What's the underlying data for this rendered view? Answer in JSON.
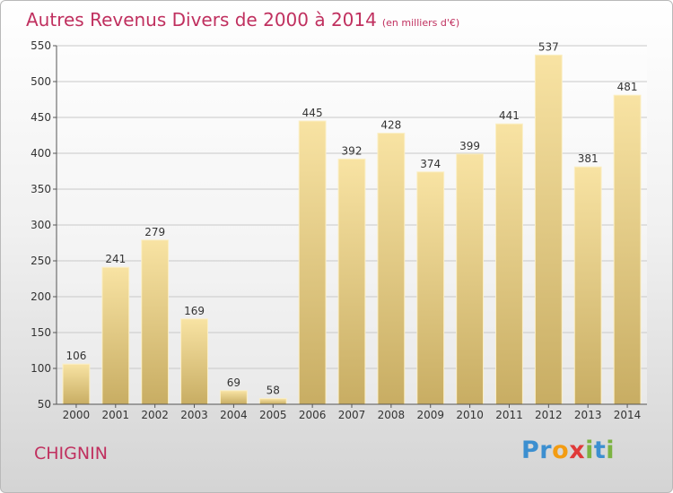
{
  "header": {
    "title": "Autres Revenus Divers de 2000 à 2014",
    "unit": "(en milliers d'€)"
  },
  "footer": {
    "place": "CHIGNIN",
    "logo_letters": [
      "P",
      "r",
      "o",
      "x",
      "i",
      "t",
      "i"
    ],
    "logo_colors": [
      "#3c8fd0",
      "#3c8fd0",
      "#f39c12",
      "#e03a3a",
      "#7cb342",
      "#3c8fd0",
      "#7cb342"
    ]
  },
  "colors": {
    "title": "#c0305f",
    "bar_light": "#f8e3a3",
    "bar_dark": "#c8ad63",
    "grid": "#c8c8c8"
  },
  "chart_data": {
    "type": "bar",
    "title": "Autres Revenus Divers de 2000 à 2014",
    "subtitle": "(en milliers d'€)",
    "xlabel": "",
    "ylabel": "",
    "categories": [
      "2000",
      "2001",
      "2002",
      "2003",
      "2004",
      "2005",
      "2006",
      "2007",
      "2008",
      "2009",
      "2010",
      "2011",
      "2012",
      "2013",
      "2014"
    ],
    "values": [
      106,
      241,
      279,
      169,
      69,
      58,
      445,
      392,
      428,
      374,
      399,
      441,
      537,
      381,
      481
    ],
    "ylim": [
      50,
      550
    ],
    "yticks": [
      50,
      100,
      150,
      200,
      250,
      300,
      350,
      400,
      450,
      500,
      550
    ],
    "grid": true,
    "legend": "none"
  }
}
